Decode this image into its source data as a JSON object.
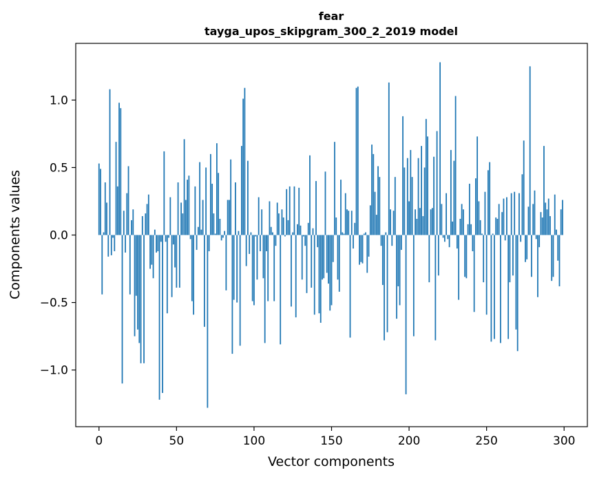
{
  "chart_data": {
    "type": "bar",
    "title": "fear",
    "subtitle": "tayga_upos_skipgram_300_2_2019 model",
    "xlabel": "Vector components",
    "ylabel": "Components values",
    "xlim": [
      -15,
      315
    ],
    "ylim": [
      -1.42,
      1.42
    ],
    "xticks": [
      0,
      50,
      100,
      150,
      200,
      250,
      300
    ],
    "xtick_labels": [
      "0",
      "50",
      "100",
      "150",
      "200",
      "250",
      "300"
    ],
    "yticks": [
      -1.0,
      -0.5,
      0.0,
      0.5,
      1.0
    ],
    "ytick_labels": [
      "−1.0",
      "−0.5",
      "0.0",
      "0.5",
      "1.0"
    ],
    "bar_color": "#1f77b4",
    "grid": false,
    "values": [
      0.53,
      0.49,
      -0.44,
      0.02,
      0.39,
      0.24,
      -0.16,
      1.08,
      -0.15,
      -0.02,
      -0.12,
      0.69,
      0.36,
      0.98,
      0.94,
      -1.1,
      0.18,
      -0.13,
      0.31,
      0.51,
      -0.44,
      0.11,
      0.19,
      -0.75,
      -0.45,
      -0.7,
      -0.8,
      -0.95,
      0.14,
      -0.95,
      0.16,
      0.23,
      0.3,
      -0.25,
      -0.22,
      -0.32,
      0.04,
      -0.13,
      -0.12,
      -1.22,
      -0.05,
      -1.17,
      0.62,
      -0.05,
      -0.58,
      -0.02,
      0.28,
      -0.46,
      -0.07,
      -0.24,
      -0.39,
      0.39,
      -0.39,
      0.24,
      0.16,
      0.71,
      0.26,
      0.41,
      0.44,
      -0.03,
      -0.49,
      -0.59,
      0.36,
      -0.11,
      0.06,
      0.54,
      0.04,
      0.26,
      -0.68,
      0.5,
      -1.28,
      -0.12,
      0.6,
      0.38,
      0.16,
      0.01,
      0.68,
      0.46,
      0.12,
      -0.04,
      -0.02,
      0.03,
      -0.41,
      0.26,
      0.26,
      0.56,
      -0.88,
      -0.48,
      0.39,
      -0.5,
      0.03,
      -0.82,
      0.66,
      1.01,
      1.09,
      -0.23,
      0.55,
      -0.14,
      0.02,
      -0.49,
      -0.52,
      -0.01,
      -0.33,
      0.28,
      -0.12,
      0.19,
      -0.32,
      -0.8,
      -0.12,
      -0.49,
      0.25,
      0.06,
      0.02,
      -0.49,
      -0.08,
      0.24,
      0.16,
      -0.81,
      0.19,
      0.13,
      -0.01,
      0.34,
      0.11,
      0.36,
      -0.53,
      0.02,
      0.36,
      -0.61,
      0.08,
      0.35,
      0.07,
      -0.33,
      -0.01,
      -0.08,
      -0.43,
      0.09,
      0.59,
      -0.39,
      0.05,
      -0.59,
      0.4,
      -0.09,
      -0.58,
      -0.65,
      -0.33,
      -0.32,
      0.47,
      -0.28,
      -0.36,
      -0.56,
      -0.52,
      -0.2,
      0.69,
      0.13,
      -0.33,
      -0.42,
      0.41,
      0.02,
      0.01,
      0.31,
      0.19,
      0.18,
      -0.76,
      0.18,
      -0.1,
      0.09,
      1.09,
      1.1,
      -0.22,
      -0.2,
      -0.21,
      0.01,
      0.02,
      -0.28,
      -0.16,
      0.22,
      0.67,
      0.6,
      0.32,
      0.15,
      0.51,
      0.43,
      -0.08,
      -0.37,
      -0.78,
      0.02,
      -0.72,
      1.13,
      0.19,
      -0.08,
      0.18,
      0.43,
      -0.62,
      -0.38,
      -0.52,
      -0.11,
      0.88,
      0.5,
      -1.18,
      0.57,
      0.25,
      0.63,
      0.43,
      -0.75,
      0.19,
      0.12,
      0.57,
      0.2,
      0.66,
      0.14,
      0.5,
      0.86,
      0.73,
      -0.35,
      0.19,
      0.2,
      0.58,
      -0.78,
      0.77,
      -0.3,
      1.28,
      0.23,
      -0.02,
      -0.05,
      0.31,
      -0.03,
      -0.09,
      0.63,
      0.1,
      0.55,
      1.03,
      -0.1,
      -0.48,
      0.12,
      0.23,
      0.19,
      -0.31,
      -0.32,
      0.08,
      0.38,
      0.08,
      -0.12,
      -0.57,
      0.42,
      0.73,
      0.25,
      0.11,
      0.01,
      -0.35,
      0.32,
      -0.59,
      0.48,
      0.54,
      -0.79,
      0.01,
      -0.77,
      0.13,
      0.12,
      0.23,
      -0.8,
      0.17,
      0.27,
      -0.04,
      0.28,
      -0.77,
      -0.35,
      0.31,
      -0.3,
      0.32,
      -0.7,
      -0.86,
      0.31,
      -0.05,
      0.45,
      0.7,
      -0.2,
      -0.18,
      0.21,
      1.25,
      -0.31,
      0.23,
      0.33,
      -0.03,
      -0.46,
      -0.09,
      0.17,
      0.13,
      0.66,
      0.24,
      0.19,
      0.27,
      0.14,
      -0.34,
      -0.31,
      0.3,
      0.04,
      -0.19,
      -0.38,
      0.19,
      0.26
    ]
  }
}
